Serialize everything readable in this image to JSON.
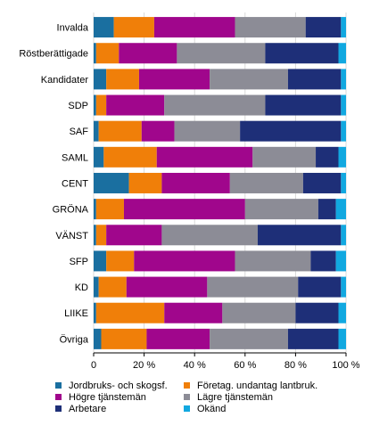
{
  "chart_data": {
    "type": "bar",
    "orientation": "horizontal",
    "stacked": true,
    "percent": true,
    "categories": [
      "Invalda",
      "Röstberättigade",
      "Kandidater",
      "SDP",
      "SAF",
      "SAML",
      "CENT",
      "GRÖNA",
      "VÄNST",
      "SFP",
      "KD",
      "LIIKE",
      "Övriga"
    ],
    "series": [
      {
        "name": "Jordbruks- och skogsf.",
        "color": "#1a6fa0",
        "values": [
          8,
          1,
          5,
          1,
          2,
          4,
          14,
          1,
          1,
          5,
          2,
          1,
          3
        ]
      },
      {
        "name": "Företag. undantag lantbruk.",
        "color": "#f07f09",
        "values": [
          16,
          9,
          13,
          4,
          17,
          21,
          13,
          11,
          4,
          11,
          11,
          27,
          18
        ]
      },
      {
        "name": "Högre tjänstemän",
        "color": "#a0068c",
        "values": [
          32,
          23,
          28,
          23,
          13,
          38,
          27,
          48,
          22,
          40,
          32,
          23,
          25
        ]
      },
      {
        "name": "Lägre tjänstemän",
        "color": "#8c8c96",
        "values": [
          28,
          35,
          31,
          40,
          26,
          25,
          29,
          29,
          38,
          30,
          36,
          29,
          31
        ]
      },
      {
        "name": "Arbetare",
        "color": "#1e2f78",
        "values": [
          14,
          29,
          21,
          30,
          40,
          9,
          15,
          7,
          33,
          10,
          17,
          17,
          20
        ]
      },
      {
        "name": "Okänd",
        "color": "#11a8e0",
        "values": [
          2,
          3,
          2,
          2,
          2,
          3,
          2,
          4,
          2,
          4,
          2,
          3,
          3
        ]
      }
    ],
    "xlim": [
      0,
      100
    ],
    "x_ticks": [
      "0",
      "20 %",
      "40 %",
      "60 %",
      "80 %",
      "100 %"
    ],
    "grid": true,
    "legend_position": "bottom"
  }
}
